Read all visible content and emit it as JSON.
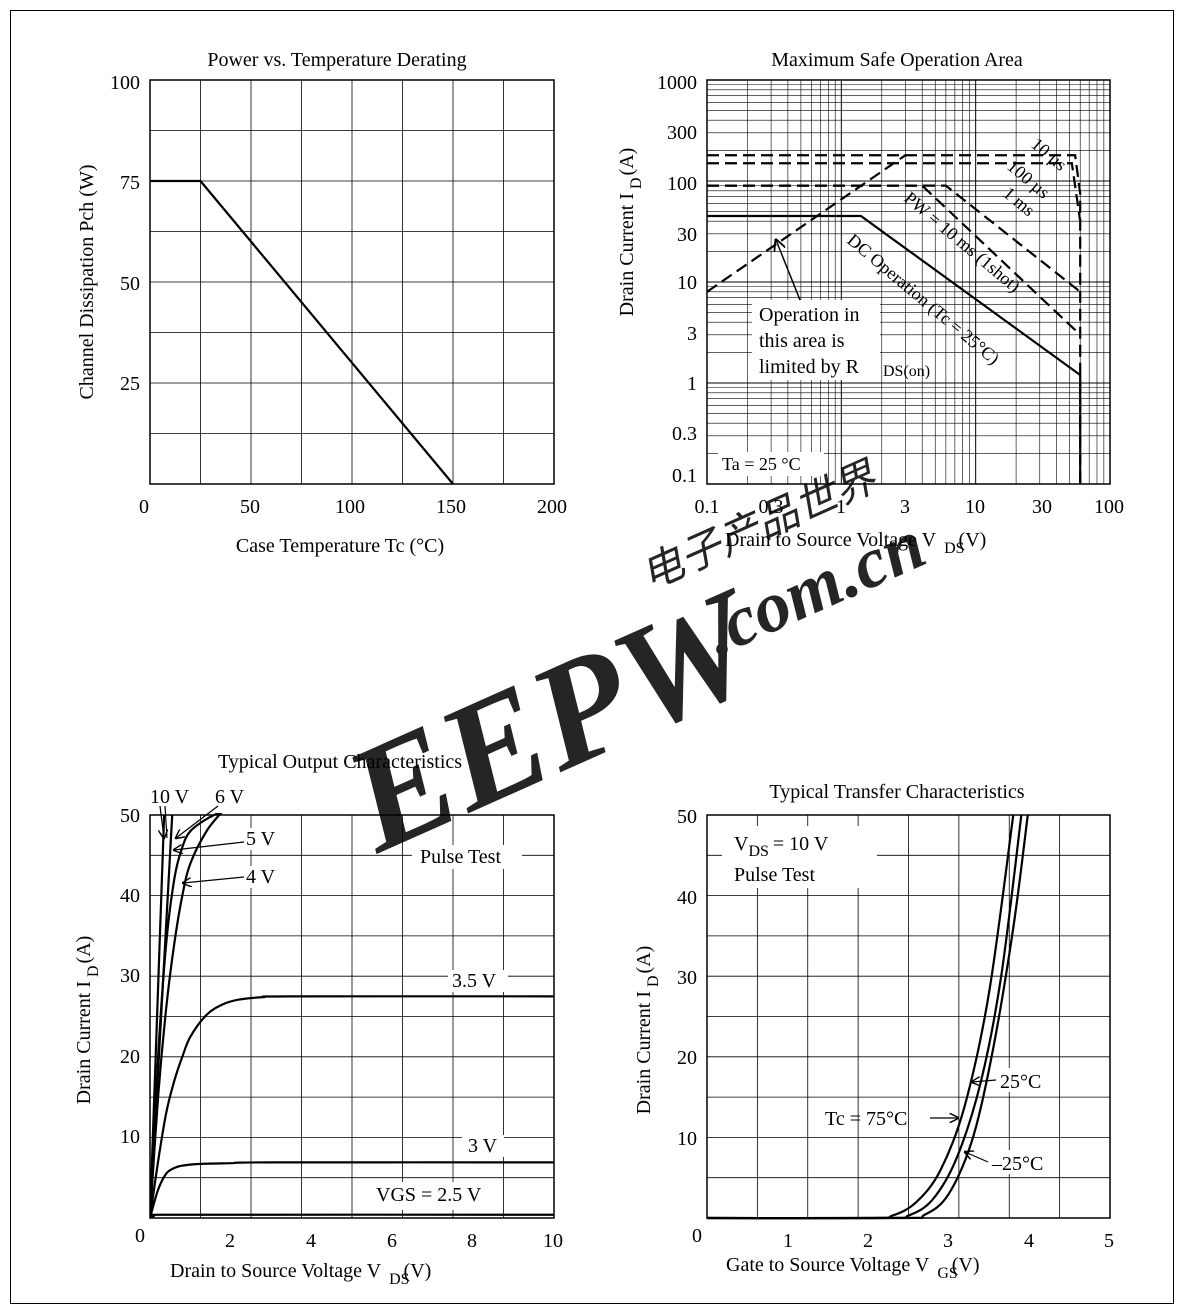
{
  "watermark": {
    "brand": "EEPW",
    "domain": ".com.cn",
    "chinese": "电子产品世界",
    "color": "#e03a3a"
  },
  "chart_data": [
    {
      "type": "line",
      "title": "Power vs. Temperature Derating",
      "xlabel": "Case Temperature   Tc  (°C)",
      "ylabel": "Channel Dissipation   Pch  (W)",
      "xlim": [
        0,
        200
      ],
      "ylim": [
        0,
        100
      ],
      "x_ticks": [
        "0",
        "50",
        "100",
        "150",
        "200"
      ],
      "y_ticks": [
        "25",
        "50",
        "75",
        "100"
      ],
      "grid": true,
      "series": [
        {
          "x": [
            0,
            25,
            150
          ],
          "y": [
            75,
            75,
            0
          ]
        }
      ]
    },
    {
      "type": "line",
      "title": "Maximum Safe Operation Area",
      "xlabel": "Drain to Source Voltage   V",
      "xlabel_sub": "DS",
      "xlabel_unit": "(V)",
      "ylabel": "Drain Current   I",
      "ylabel_sub": "D",
      "ylabel_unit": "(A)",
      "xscale": "log",
      "yscale": "log",
      "xlim": [
        0.1,
        100
      ],
      "ylim": [
        0.1,
        1000
      ],
      "x_ticks": [
        "0.1",
        "0.3",
        "1",
        "3",
        "10",
        "30",
        "100"
      ],
      "y_ticks": [
        "0.1",
        "0.3",
        "1",
        "3",
        "10",
        "30",
        "100",
        "300",
        "1000"
      ],
      "grid": true,
      "series": [
        {
          "name": "10 µs",
          "style": "dashed",
          "x": [
            0.1,
            3.8,
            55,
            60,
            60
          ],
          "y": [
            180,
            180,
            180,
            75,
            0.1
          ]
        },
        {
          "name": "100 µs",
          "style": "dashed",
          "x": [
            0.1,
            2.8,
            52,
            60
          ],
          "y": [
            150,
            150,
            150,
            40
          ]
        },
        {
          "name": "1 ms",
          "style": "dashed",
          "x": [
            0.1,
            2.2,
            6,
            60
          ],
          "y": [
            90,
            90,
            90,
            8
          ]
        },
        {
          "name": "PW = 10 ms (1shot)",
          "style": "dashed",
          "x": [
            0.1,
            2.2,
            4,
            60
          ],
          "y": [
            90,
            90,
            90,
            3
          ]
        },
        {
          "name": "DC Operation (Tc = 25°C)",
          "style": "solid",
          "x": [
            0.1,
            1.4,
            60,
            60
          ],
          "y": [
            45,
            45,
            1.2,
            0.1
          ]
        },
        {
          "name": "R DS(on) limit",
          "style": "dashed",
          "x": [
            0.1,
            3
          ],
          "y": [
            8,
            180
          ]
        }
      ],
      "annotations": [
        "Operation in",
        "this area is",
        "limited by R",
        "DS(on)",
        "Ta = 25 °C"
      ]
    },
    {
      "type": "line",
      "title": "Typical Output Characteristics",
      "xlabel": "Drain to Source Voltage   V",
      "xlabel_sub": "DS",
      "xlabel_unit": "(V)",
      "ylabel": "Drain Current   I",
      "ylabel_sub": "D",
      "ylabel_unit": "(A)",
      "xlim": [
        0,
        10
      ],
      "ylim": [
        0,
        50
      ],
      "x_ticks": [
        "0",
        "2",
        "4",
        "6",
        "8",
        "10"
      ],
      "y_ticks": [
        "10",
        "20",
        "30",
        "40",
        "50"
      ],
      "grid": true,
      "series": [
        {
          "name": "10 V",
          "x": [
            0,
            0.35
          ],
          "y": [
            0,
            50
          ]
        },
        {
          "name": "6 V",
          "x": [
            0,
            0.55
          ],
          "y": [
            0,
            50
          ]
        },
        {
          "name": "5 V",
          "x": [
            0,
            0.2,
            0.4,
            0.6,
            0.8,
            1.0,
            1.4,
            1.8
          ],
          "y": [
            0,
            20,
            34,
            42,
            46,
            48,
            49.5,
            50.5
          ]
        },
        {
          "name": "4 V",
          "x": [
            0,
            0.2,
            0.4,
            0.6,
            0.8,
            1.0,
            1.4,
            1.8
          ],
          "y": [
            0,
            15,
            26,
            34,
            40,
            44,
            48,
            50.5
          ]
        },
        {
          "name": "3.5 V",
          "x": [
            0,
            0.2,
            0.4,
            0.6,
            0.8,
            1.0,
            1.4,
            1.8,
            2.2,
            2.8,
            3.5,
            10
          ],
          "y": [
            0,
            7,
            13,
            17,
            20,
            22.5,
            25.2,
            26.5,
            27.1,
            27.4,
            27.5,
            27.5
          ]
        },
        {
          "name": "3 V",
          "x": [
            0,
            0.2,
            0.4,
            0.6,
            0.8,
            1.2,
            2,
            3,
            10
          ],
          "y": [
            0,
            3.5,
            5.5,
            6.2,
            6.5,
            6.7,
            6.8,
            6.9,
            6.9
          ]
        },
        {
          "name": "VGS = 2.5 V",
          "x": [
            0,
            0.1,
            0.3,
            10
          ],
          "y": [
            0,
            0.25,
            0.4,
            0.4
          ]
        }
      ],
      "annotations": [
        "Pulse Test"
      ]
    },
    {
      "type": "line",
      "title": "Typical Transfer Characteristics",
      "xlabel": "Gate to Source Voltage   V",
      "xlabel_sub": "GS",
      "xlabel_unit": "(V)",
      "ylabel": "Drain Current   I",
      "ylabel_sub": "D",
      "ylabel_unit": "(A)",
      "xlim": [
        0,
        5
      ],
      "ylim": [
        0,
        50
      ],
      "x_ticks": [
        "0",
        "1",
        "2",
        "3",
        "4",
        "5"
      ],
      "y_ticks": [
        "10",
        "20",
        "30",
        "40",
        "50"
      ],
      "grid": true,
      "series": [
        {
          "name": "Tc = 75°C",
          "x": [
            0,
            2.0,
            2.3,
            2.6,
            2.9,
            3.2,
            3.5,
            3.8
          ],
          "y": [
            0,
            0,
            0.3,
            2,
            6,
            14,
            28,
            50
          ]
        },
        {
          "name": "25°C",
          "x": [
            0,
            2.2,
            2.5,
            2.8,
            3.1,
            3.4,
            3.65,
            3.9
          ],
          "y": [
            0,
            0,
            0.3,
            2.3,
            7.5,
            17,
            30,
            50
          ]
        },
        {
          "name": "–25°C",
          "x": [
            0,
            2.4,
            2.7,
            3.0,
            3.3,
            3.55,
            3.8,
            3.98
          ],
          "y": [
            0,
            0,
            0.4,
            3,
            10,
            21,
            36,
            50
          ]
        }
      ],
      "annotations": [
        "V",
        "DS",
        "= 10 V",
        "Pulse Test"
      ]
    }
  ]
}
